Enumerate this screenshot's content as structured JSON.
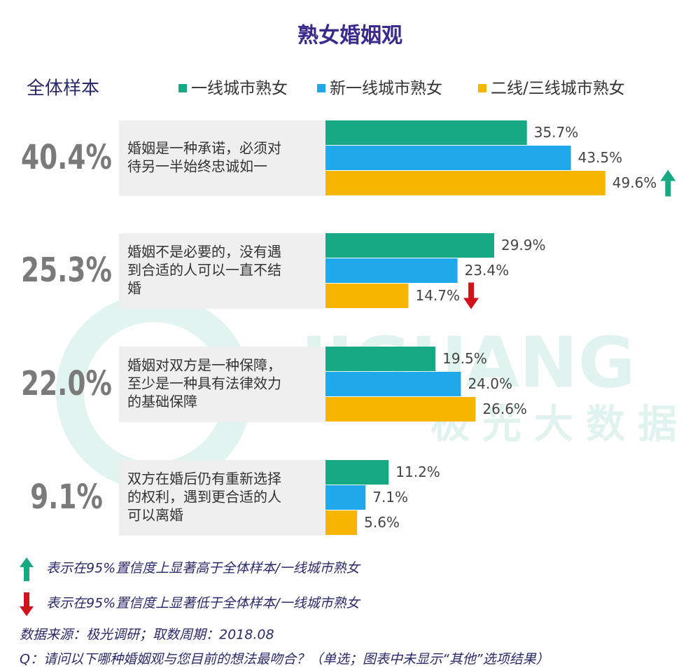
{
  "chart_data": {
    "type": "bar",
    "orientation": "horizontal",
    "title": "熟女婚姻观",
    "overall": {
      "label": "全体样本",
      "values": [
        40.4,
        25.3,
        22.0,
        9.1
      ],
      "value_labels": [
        "40.4%",
        "25.3%",
        "22.0%",
        "9.1%"
      ]
    },
    "categories": [
      [
        "婚姻是一种承诺，必须对",
        "待另一半始终忠诚如一"
      ],
      [
        "婚姻不是必要的，没有遇",
        "到合适的人可以一直不结",
        "婚"
      ],
      [
        "婚姻对双方是一种保障，",
        "至少是一种具有法律效力",
        "的基础保障"
      ],
      [
        "双方在婚后仍有重新选择",
        "的权利，遇到更合适的人",
        "可以离婚"
      ]
    ],
    "series": [
      {
        "name": "一线城市熟女",
        "color": "#17a884",
        "values": [
          35.7,
          29.9,
          19.5,
          11.2
        ],
        "value_labels": [
          "35.7%",
          "29.9%",
          "19.5%",
          "11.2%"
        ]
      },
      {
        "name": "新一线城市熟女",
        "color": "#1fa8ea",
        "values": [
          43.5,
          23.4,
          24.0,
          7.1
        ],
        "value_labels": [
          "43.5%",
          "23.4%",
          "24.0%",
          "7.1%"
        ]
      },
      {
        "name": "二线/三线城市熟女",
        "color": "#f7b500",
        "values": [
          49.6,
          14.7,
          26.6,
          5.6
        ],
        "value_labels": [
          "49.6%",
          "14.7%",
          "26.6%",
          "5.6%"
        ],
        "significance": [
          "up",
          "down",
          null,
          null
        ]
      }
    ],
    "notes": {
      "up": "表示在95%置信度上显著高于全体样本/一线城市熟女",
      "down": "表示在95%置信度上显著低于全体样本/一线城市熟女"
    },
    "source": "数据来源：极光调研；取数周期：2018.08",
    "question": "Q：请问以下哪种婚姻观与您目前的想法最吻合？（单选；图表中未显示“其他”选项结果）",
    "watermark": {
      "latin": "JIGUANG",
      "chinese": "极光大数据"
    }
  }
}
